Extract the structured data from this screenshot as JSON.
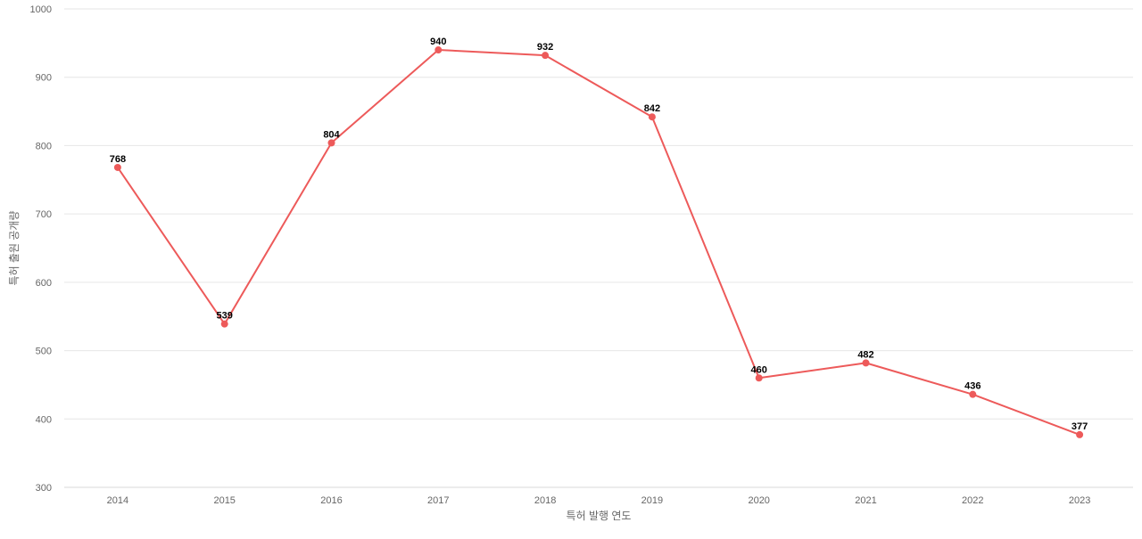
{
  "chart_data": {
    "type": "line",
    "title": "",
    "xlabel": "특허 발행 연도",
    "ylabel": "특허 출원 공개량",
    "x": [
      "2014",
      "2015",
      "2016",
      "2017",
      "2018",
      "2019",
      "2020",
      "2021",
      "2022",
      "2023"
    ],
    "series": [
      {
        "values": [
          768,
          539,
          804,
          940,
          932,
          842,
          460,
          482,
          436,
          377
        ],
        "color": "#ed5a5a"
      }
    ],
    "ylim": [
      300,
      1000
    ],
    "yticks": [
      300,
      400,
      500,
      600,
      700,
      800,
      900,
      1000
    ],
    "grid": true,
    "legend": "none",
    "data_labels": true
  }
}
